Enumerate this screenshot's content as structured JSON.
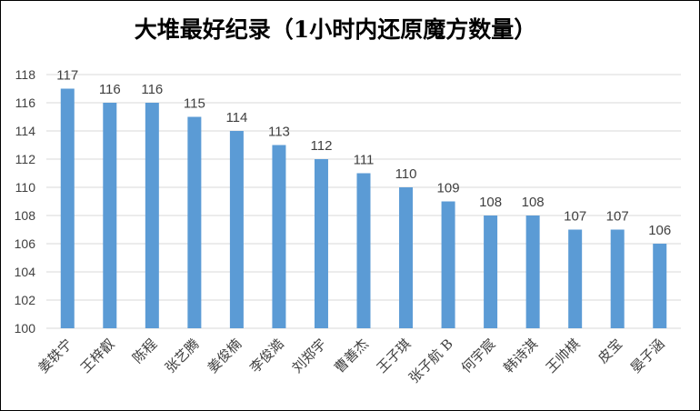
{
  "chart_data": {
    "type": "bar",
    "title": "大堆最好纪录（1小时内还原魔方数量）",
    "xlabel": "",
    "ylabel": "",
    "categories": [
      "姜轶宁",
      "王梓叡",
      "陈程",
      "张艺腾",
      "姜俊楠",
      "李俊澔",
      "刘郑宇",
      "曹善杰",
      "王子琪",
      "张子航 B",
      "何宇宸",
      "韩诗淇",
      "王帅棋",
      "皮宝",
      "晏子涵"
    ],
    "values": [
      117,
      116,
      116,
      115,
      114,
      113,
      112,
      111,
      110,
      109,
      108,
      108,
      107,
      107,
      106
    ],
    "ylim": [
      100,
      118
    ],
    "yticks": [
      "100",
      "102",
      "104",
      "106",
      "108",
      "110",
      "112",
      "114",
      "116",
      "118"
    ],
    "grid": true,
    "legend": "none",
    "colors": {
      "bar": "#5b9bd5",
      "grid": "#d9d9d9",
      "text": "#404040",
      "title": "#000000"
    }
  }
}
